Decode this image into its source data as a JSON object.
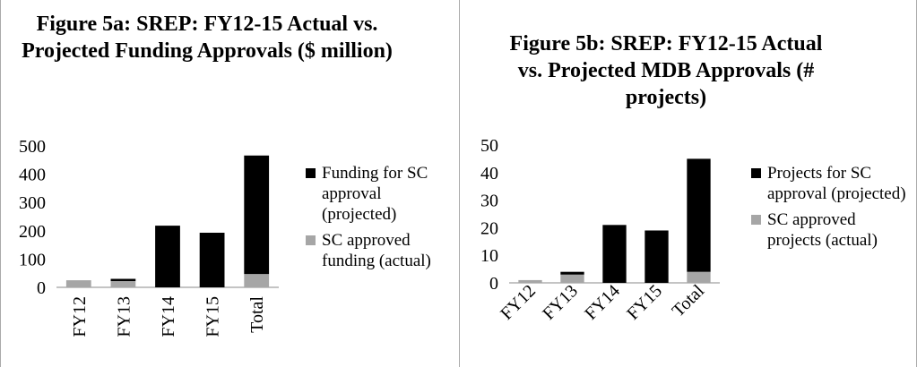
{
  "chart_data": [
    {
      "type": "stacked_bar",
      "title": "Figure 5a: SREP: FY12-15 Actual vs. Projected Funding Approvals ($ million)",
      "categories": [
        "FY12",
        "FY13",
        "FY14",
        "FY15",
        "Total"
      ],
      "series": [
        {
          "name": "SC approved funding (actual)",
          "color": "#a6a6a6",
          "values": [
            25,
            22,
            0,
            0,
            47
          ]
        },
        {
          "name": "Funding for SC approval (projected)",
          "color": "#000000",
          "values": [
            0,
            8,
            218,
            193,
            419
          ]
        }
      ],
      "ylim": [
        0,
        500
      ],
      "yticks": [
        0,
        100,
        200,
        300,
        400,
        500
      ],
      "grid": false,
      "legend": "right"
    },
    {
      "type": "stacked_bar",
      "title": "Figure 5b: SREP: FY12-15 Actual vs. Projected MDB Approvals (# projects)",
      "categories": [
        "FY12",
        "FY13",
        "FY14",
        "FY15",
        "Total"
      ],
      "series": [
        {
          "name": "SC approved projects (actual)",
          "color": "#a6a6a6",
          "values": [
            1,
            3,
            0,
            0,
            4
          ]
        },
        {
          "name": "Projects for SC approval (projected)",
          "color": "#000000",
          "values": [
            0,
            1,
            21,
            19,
            41
          ]
        }
      ],
      "ylim": [
        0,
        50
      ],
      "yticks": [
        0,
        10,
        20,
        30,
        40,
        50
      ],
      "grid": false,
      "legend": "right"
    }
  ]
}
